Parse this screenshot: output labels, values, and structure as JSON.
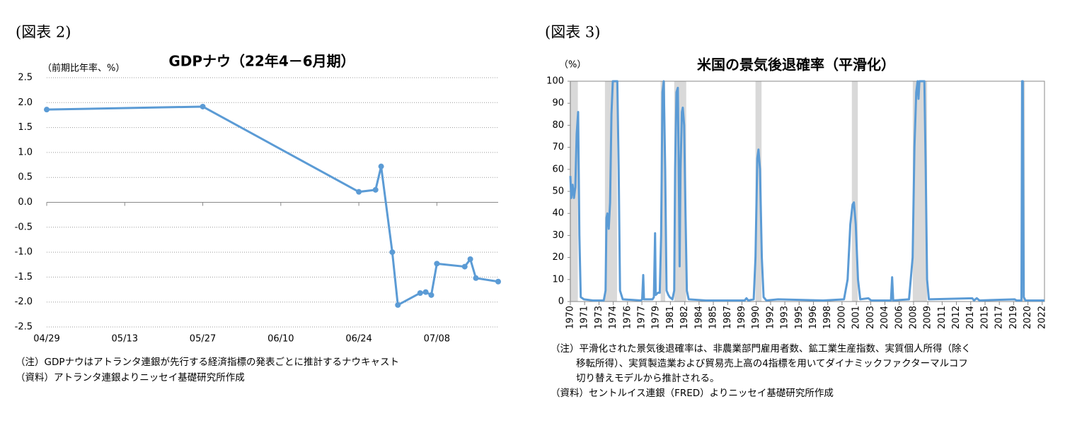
{
  "chart_data": [
    {
      "type": "line",
      "figure_label": "(図表 2)",
      "title": "GDPナウ（22年4－6月期）",
      "y_label": "（前期比年率、%）",
      "x": [
        "04/29",
        "05/27",
        "06/24",
        "06/27",
        "06/28",
        "06/30",
        "07/01",
        "07/05",
        "07/06",
        "07/07",
        "07/08",
        "07/13",
        "07/14",
        "07/15",
        "07/19"
      ],
      "values": [
        1.86,
        1.92,
        0.21,
        0.25,
        0.72,
        -1.0,
        -2.06,
        -1.82,
        -1.8,
        -1.86,
        -1.23,
        -1.29,
        -1.14,
        -1.52,
        -1.59
      ],
      "color": "#5b9bd5",
      "markers": true,
      "grid": true,
      "xlim": [
        "04/29",
        "07/19"
      ],
      "xticks": [
        "04/29",
        "05/13",
        "05/27",
        "06/10",
        "06/24",
        "07/08"
      ],
      "ylim": [
        -2.5,
        2.5
      ],
      "yticks": [
        2.5,
        {
          "value": 2,
          "label": "2.0"
        },
        1.5,
        {
          "value": 1,
          "label": "1.0"
        },
        0.5,
        {
          "value": 0,
          "label": "0.0"
        },
        -0.5,
        {
          "value": -1,
          "label": "-1.0"
        },
        -1.5,
        {
          "value": -2,
          "label": "-2.0"
        },
        -2.5
      ],
      "notes": [
        "（注）GDPナウはアトランタ連銀が先行する経済指標の発表ごとに推計するナウキャスト",
        "（資料）アトランタ連銀よりニッセイ基礎研究所作成"
      ]
    },
    {
      "type": "line",
      "figure_label": "(図表 3)",
      "title": "米国の景気後退確率（平滑化）",
      "y_label": "（%）",
      "x": [
        1970.0,
        1970.1,
        1970.25,
        1970.4,
        1970.55,
        1970.7,
        1970.86,
        1971.0,
        1971.15,
        1971.5,
        1972.5,
        1973.7,
        1973.9,
        1974.0,
        1974.1,
        1974.25,
        1974.4,
        1974.55,
        1974.7,
        1975.2,
        1975.35,
        1975.5,
        1975.8,
        1977.8,
        1977.95,
        1978.07,
        1978.15,
        1979.1,
        1979.25,
        1979.38,
        1979.45,
        1979.7,
        1979.9,
        1980.05,
        1980.2,
        1980.34,
        1980.5,
        1980.65,
        1980.85,
        1981.0,
        1981.3,
        1981.5,
        1981.6,
        1981.75,
        1981.9,
        1982.05,
        1982.1,
        1982.2,
        1982.35,
        1982.45,
        1982.6,
        1982.75,
        1982.9,
        1983.1,
        1985.0,
        1989.3,
        1989.5,
        1989.7,
        1990.3,
        1990.5,
        1990.7,
        1990.83,
        1991.0,
        1991.2,
        1991.4,
        1991.7,
        1993.0,
        1998.0,
        2000.3,
        2000.7,
        2001.0,
        2001.25,
        2001.4,
        2001.6,
        2001.85,
        2002.1,
        2003.0,
        2003.3,
        2005.5,
        2005.63,
        2005.75,
        2007.5,
        2007.9,
        2008.1,
        2008.3,
        2008.45,
        2008.55,
        2008.65,
        2009.2,
        2009.35,
        2009.5,
        2009.7,
        2014.5,
        2014.7,
        2015.0,
        2015.3,
        2019.2,
        2019.4,
        2019.95,
        2020.02,
        2020.1,
        2020.2,
        2020.4,
        2022.5
      ],
      "values": [
        57,
        47,
        53,
        47,
        52,
        76,
        86,
        30,
        2,
        1,
        0.5,
        0.5,
        5,
        38,
        40,
        33,
        45,
        85,
        100,
        100,
        60,
        5,
        1,
        0.5,
        1,
        12,
        1,
        1,
        2,
        31,
        3,
        4,
        4,
        30,
        95,
        100,
        60,
        5,
        3,
        2,
        1,
        5,
        60,
        95,
        97,
        40,
        16,
        60,
        86,
        88,
        80,
        40,
        5,
        1,
        0.5,
        0.5,
        1.5,
        0.5,
        1,
        20,
        65,
        69,
        60,
        20,
        2,
        0.5,
        1,
        0.5,
        1,
        10,
        35,
        44,
        45,
        35,
        10,
        1,
        1.5,
        0.5,
        0.5,
        11,
        0.5,
        1,
        20,
        70,
        95,
        100,
        92,
        100,
        100,
        60,
        10,
        1,
        1.5,
        0.5,
        1.5,
        0.5,
        1,
        0.5,
        0.5,
        100,
        100,
        2,
        0.5,
        0.5
      ],
      "color": "#5b9bd5",
      "markers": false,
      "grid": false,
      "recessions": [
        [
          1969.92,
          1970.83
        ],
        [
          1973.83,
          1975.17
        ],
        [
          1980.0,
          1980.5
        ],
        [
          1981.5,
          1982.83
        ],
        [
          1990.5,
          1991.17
        ],
        [
          2001.17,
          2001.83
        ],
        [
          2007.92,
          2009.5
        ],
        [
          2020.08,
          2020.33
        ]
      ],
      "xlim": [
        1970,
        2022.5
      ],
      "xticks": [
        {
          "value": 1970,
          "label": "1970"
        },
        {
          "value": 1971.58,
          "label": "1971"
        },
        {
          "value": 1973.17,
          "label": "1973"
        },
        {
          "value": 1974.75,
          "label": "1974"
        },
        {
          "value": 1976.33,
          "label": "1976"
        },
        {
          "value": 1977.92,
          "label": "1977"
        },
        {
          "value": 1979.5,
          "label": "1979"
        },
        {
          "value": 1981.08,
          "label": "1981"
        },
        {
          "value": 1982.67,
          "label": "1982"
        },
        {
          "value": 1984.25,
          "label": "1984"
        },
        {
          "value": 1985.83,
          "label": "1985"
        },
        {
          "value": 1987.42,
          "label": "1987"
        },
        {
          "value": 1989,
          "label": "1989"
        },
        {
          "value": 1990.58,
          "label": "1990"
        },
        {
          "value": 1992.17,
          "label": "1992"
        },
        {
          "value": 1993.75,
          "label": "1993"
        },
        {
          "value": 1995.33,
          "label": "1995"
        },
        {
          "value": 1996.92,
          "label": "1996"
        },
        {
          "value": 1998.5,
          "label": "1998"
        },
        {
          "value": 2000.08,
          "label": "2000"
        },
        {
          "value": 2001.67,
          "label": "2001"
        },
        {
          "value": 2003.25,
          "label": "2003"
        },
        {
          "value": 2004.83,
          "label": "2004"
        },
        {
          "value": 2006.42,
          "label": "2006"
        },
        {
          "value": 2008,
          "label": "2008"
        },
        {
          "value": 2009.58,
          "label": "2009"
        },
        {
          "value": 2011.17,
          "label": "2011"
        },
        {
          "value": 2012.75,
          "label": "2012"
        },
        {
          "value": 2014.33,
          "label": "2014"
        },
        {
          "value": 2015.92,
          "label": "2015"
        },
        {
          "value": 2017.5,
          "label": "2017"
        },
        {
          "value": 2019.08,
          "label": "2019"
        },
        {
          "value": 2020.67,
          "label": "2020"
        },
        {
          "value": 2022.25,
          "label": "2022"
        }
      ],
      "ylim": [
        0,
        100
      ],
      "yticks": [
        0,
        10,
        20,
        30,
        40,
        50,
        60,
        70,
        80,
        90,
        100
      ],
      "notes": [
        "（注）平滑化された景気後退確率は、非農業部門雇用者数、鉱工業生産指数、実質個人所得（除く",
        "移転所得）、実質製造業および貿易売上高の4指標を用いてダイナミックファクターマルコフ",
        "切り替えモデルから推計される。",
        "（資料）セントルイス連銀（FRED）よりニッセイ基礎研究所作成"
      ]
    }
  ]
}
